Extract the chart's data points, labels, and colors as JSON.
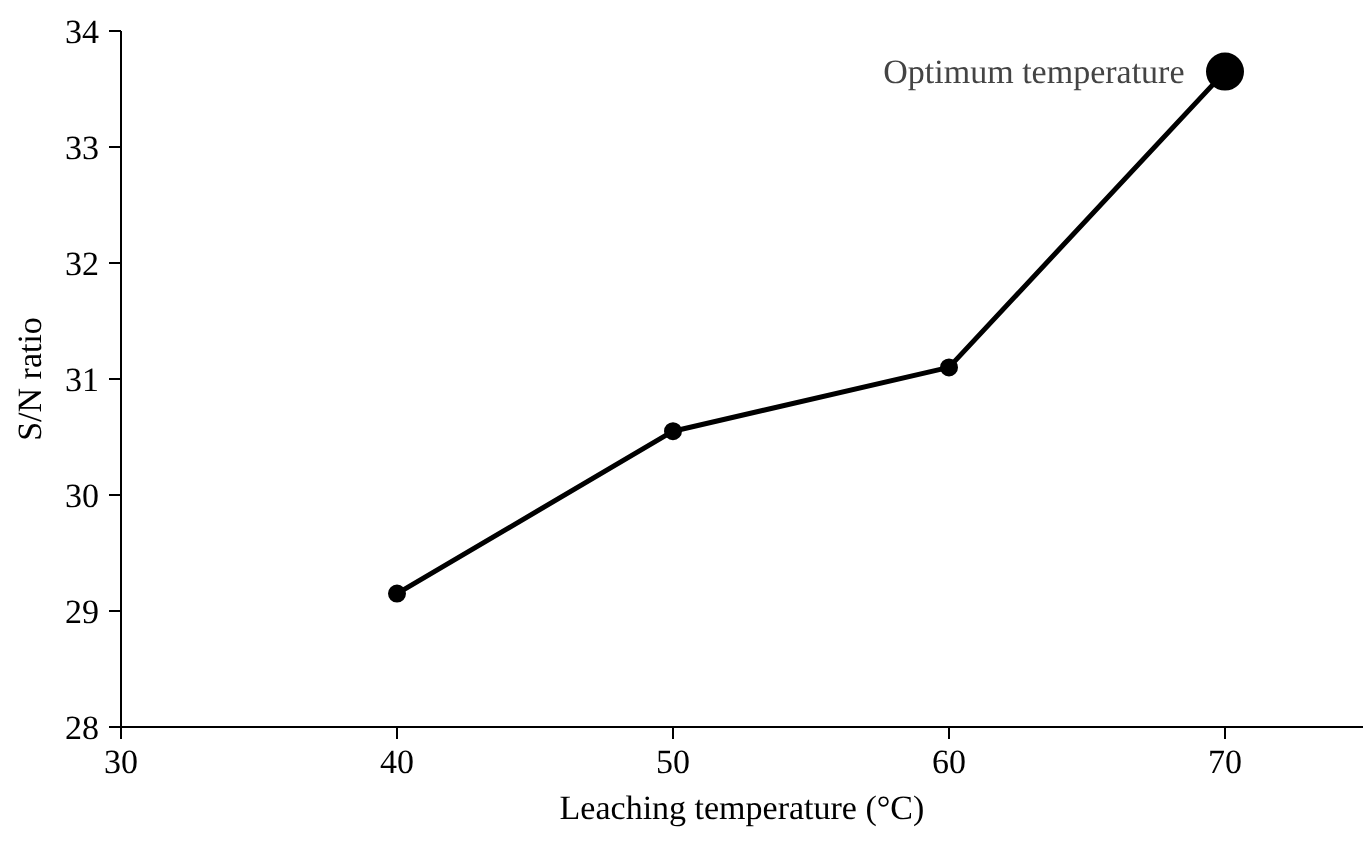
{
  "chart_data": {
    "type": "line",
    "xlabel": "Leaching temperature (°C)",
    "ylabel": "S/N ratio",
    "x": [
      40,
      50,
      60,
      70
    ],
    "series": [
      {
        "color": "#000000",
        "values": [
          29.15,
          30.55,
          31.1,
          33.65
        ]
      }
    ],
    "annotations": [
      {
        "text": "Optimum  temperature",
        "x": 70,
        "y": 33.65
      }
    ],
    "xlim": [
      30,
      75
    ],
    "ylim": [
      28,
      34
    ],
    "xticks": [
      30,
      40,
      50,
      60,
      70
    ],
    "yticks": [
      28,
      29,
      30,
      31,
      32,
      33,
      34
    ],
    "grid": false,
    "marker": "circle",
    "line_style": "solid"
  }
}
